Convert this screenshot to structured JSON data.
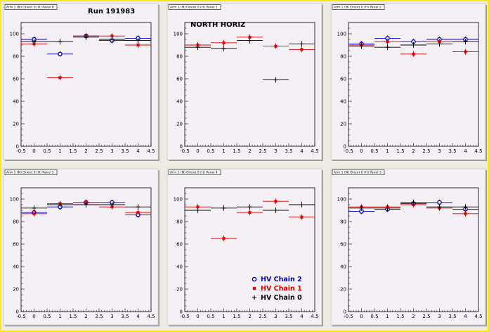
{
  "colors": {
    "chain2": "#0000cc",
    "chain1": "#dd0000",
    "chain0": "#000000",
    "frame": "#f5ea20",
    "pad_bg": "#f5f0f5"
  },
  "chart_data": [
    {
      "type": "scatter",
      "pad_title": "Arm 1 (N) Orient 0 (H) Panel 0",
      "annotation": "Run 191983",
      "xlim": [
        -0.5,
        4.5
      ],
      "ylim": [
        0,
        110
      ],
      "xticks": [
        "-0.5",
        "0",
        "0.5",
        "1",
        "1.5",
        "2",
        "2.5",
        "3",
        "3.5",
        "4",
        "4.5"
      ],
      "yticks": [
        "0",
        "20",
        "40",
        "60",
        "80",
        "100"
      ],
      "series": [
        {
          "name": "HV Chain 2",
          "marker": "circle",
          "x": [
            0,
            1,
            2,
            3,
            4
          ],
          "y": [
            95,
            82,
            98,
            94,
            96
          ]
        },
        {
          "name": "HV Chain 1",
          "marker": "star",
          "x": [
            0,
            1,
            2,
            3,
            4
          ],
          "y": [
            91,
            61,
            98,
            98,
            90
          ]
        },
        {
          "name": "HV Chain 0",
          "marker": "plus",
          "x": [
            0,
            1,
            2,
            3,
            4
          ],
          "y": [
            93,
            93,
            97,
            95,
            94
          ]
        }
      ]
    },
    {
      "type": "scatter",
      "pad_title": "Arm 1 (N) Orient 0 (H) Panel 1",
      "annotation": "NORTH HORIZ",
      "xlim": [
        -0.5,
        4.5
      ],
      "ylim": [
        0,
        110
      ],
      "xticks": [
        "-0.5",
        "0",
        "0.5",
        "1",
        "1.5",
        "2",
        "2.5",
        "3",
        "3.5",
        "4",
        "4.5"
      ],
      "yticks": [
        "0",
        "20",
        "40",
        "60",
        "80",
        "100"
      ],
      "series": [
        {
          "name": "HV Chain 1",
          "marker": "star",
          "x": [
            0,
            1,
            2,
            3,
            4
          ],
          "y": [
            90,
            92,
            97,
            89,
            86
          ]
        },
        {
          "name": "HV Chain 0",
          "marker": "plus",
          "x": [
            0,
            1,
            2,
            3,
            4
          ],
          "y": [
            88,
            87,
            94,
            59,
            91
          ]
        }
      ]
    },
    {
      "type": "scatter",
      "pad_title": "Arm 1 (N) Orient 0 (H) Panel 2",
      "xlim": [
        -0.5,
        4.5
      ],
      "ylim": [
        0,
        110
      ],
      "xticks": [
        "-0.5",
        "0",
        "0.5",
        "1",
        "1.5",
        "2",
        "2.5",
        "3",
        "3.5",
        "4",
        "4.5"
      ],
      "yticks": [
        "0",
        "20",
        "40",
        "60",
        "80",
        "100"
      ],
      "series": [
        {
          "name": "HV Chain 2",
          "marker": "circle",
          "x": [
            0,
            1,
            2,
            3,
            4
          ],
          "y": [
            91,
            96,
            93,
            95,
            95
          ]
        },
        {
          "name": "HV Chain 1",
          "marker": "star",
          "x": [
            0,
            1,
            2,
            3,
            4
          ],
          "y": [
            90,
            93,
            82,
            93,
            84
          ]
        },
        {
          "name": "HV Chain 0",
          "marker": "plus",
          "x": [
            0,
            1,
            2,
            3,
            4
          ],
          "y": [
            89,
            88,
            90,
            91,
            93
          ]
        }
      ]
    },
    {
      "type": "scatter",
      "pad_title": "Arm 1 (N) Orient 0 (H) Panel 5",
      "xlim": [
        -0.5,
        4.5
      ],
      "ylim": [
        0,
        110
      ],
      "xticks": [
        "-0.5",
        "0",
        "0.5",
        "1",
        "1.5",
        "2",
        "2.5",
        "3",
        "3.5",
        "4",
        "4.5"
      ],
      "yticks": [
        "0",
        "20",
        "40",
        "60",
        "80",
        "100"
      ],
      "series": [
        {
          "name": "HV Chain 2",
          "marker": "circle",
          "x": [
            0,
            1,
            2,
            3,
            4
          ],
          "y": [
            88,
            93,
            97,
            97,
            86
          ]
        },
        {
          "name": "HV Chain 1",
          "marker": "star",
          "x": [
            0,
            1,
            2,
            3,
            4
          ],
          "y": [
            87,
            96,
            97,
            93,
            88
          ]
        },
        {
          "name": "HV Chain 0",
          "marker": "plus",
          "x": [
            0,
            1,
            2,
            3,
            4
          ],
          "y": [
            92,
            95,
            95,
            95,
            93
          ]
        }
      ]
    },
    {
      "type": "scatter",
      "pad_title": "Arm 1 (N) Orient 0 (H) Panel 4",
      "xlim": [
        -0.5,
        4.5
      ],
      "ylim": [
        0,
        110
      ],
      "xticks": [
        "-0.5",
        "0",
        "0.5",
        "1",
        "1.5",
        "2",
        "2.5",
        "3",
        "3.5",
        "4",
        "4.5"
      ],
      "yticks": [
        "0",
        "20",
        "40",
        "60",
        "80",
        "100"
      ],
      "legend": {
        "position": "bottom-right",
        "entries": [
          "HV Chain 2",
          "HV Chain 1",
          "HV Chain 0"
        ]
      },
      "series": [
        {
          "name": "HV Chain 1",
          "marker": "star",
          "x": [
            0,
            1,
            2,
            3,
            4
          ],
          "y": [
            93,
            65,
            88,
            98,
            84
          ]
        },
        {
          "name": "HV Chain 0",
          "marker": "plus",
          "x": [
            0,
            1,
            2,
            3,
            4
          ],
          "y": [
            90,
            92,
            93,
            90,
            95
          ]
        }
      ]
    },
    {
      "type": "scatter",
      "pad_title": "Arm 1 (N) Orient 0 (H) Panel 3",
      "xlim": [
        -0.5,
        4.5
      ],
      "ylim": [
        0,
        110
      ],
      "xticks": [
        "-0.5",
        "0",
        "0.5",
        "1",
        "1.5",
        "2",
        "2.5",
        "3",
        "3.5",
        "4",
        "4.5"
      ],
      "yticks": [
        "0",
        "20",
        "40",
        "60",
        "80",
        "100"
      ],
      "series": [
        {
          "name": "HV Chain 2",
          "marker": "circle",
          "x": [
            0,
            1,
            2,
            3,
            4
          ],
          "y": [
            89,
            91,
            96,
            97,
            91
          ]
        },
        {
          "name": "HV Chain 1",
          "marker": "star",
          "x": [
            0,
            1,
            2,
            3,
            4
          ],
          "y": [
            93,
            93,
            95,
            92,
            87
          ]
        },
        {
          "name": "HV Chain 0",
          "marker": "plus",
          "x": [
            0,
            1,
            2,
            3,
            4
          ],
          "y": [
            92,
            92,
            97,
            93,
            93
          ]
        }
      ]
    }
  ]
}
